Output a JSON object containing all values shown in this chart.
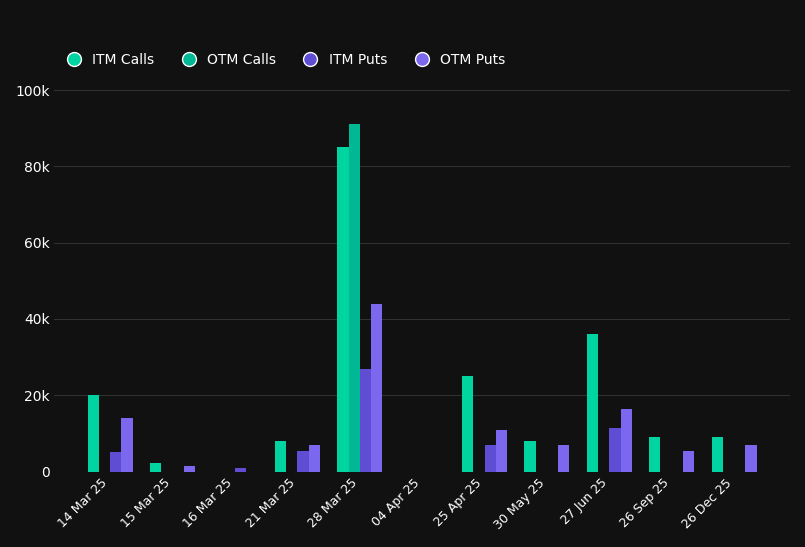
{
  "categories": [
    "14 Mar 25",
    "15 Mar 25",
    "16 Mar 25",
    "21 Mar 25",
    "28 Mar 25",
    "04 Apr 25",
    "25 Apr 25",
    "30 May 25",
    "27 Jun 25",
    "26 Sep 25",
    "26 Dec 25"
  ],
  "itm_calls": [
    20000,
    2200,
    0,
    8000,
    85000,
    0,
    25000,
    8000,
    36000,
    9000,
    9000
  ],
  "otm_calls": [
    0,
    0,
    0,
    0,
    91000,
    0,
    0,
    0,
    0,
    0,
    0
  ],
  "itm_puts": [
    5000,
    0,
    800,
    5500,
    27000,
    0,
    7000,
    0,
    11500,
    0,
    0
  ],
  "otm_puts": [
    14000,
    1500,
    0,
    7000,
    44000,
    0,
    11000,
    7000,
    16500,
    5500,
    7000
  ],
  "colors": {
    "itm_calls": "#00d4a0",
    "otm_calls": "#00b894",
    "itm_puts": "#5f4dd4",
    "otm_puts": "#7b68ee"
  },
  "background": "#111111",
  "text_color": "#ffffff",
  "grid_color": "#333333",
  "ylim": [
    0,
    100000
  ],
  "yticks": [
    0,
    20000,
    40000,
    60000,
    80000,
    100000
  ],
  "ytick_labels": [
    "0",
    "20k",
    "40k",
    "60k",
    "80k",
    "100k"
  ],
  "legend_labels": [
    "ITM Calls",
    "OTM Calls",
    "ITM Puts",
    "OTM Puts"
  ]
}
